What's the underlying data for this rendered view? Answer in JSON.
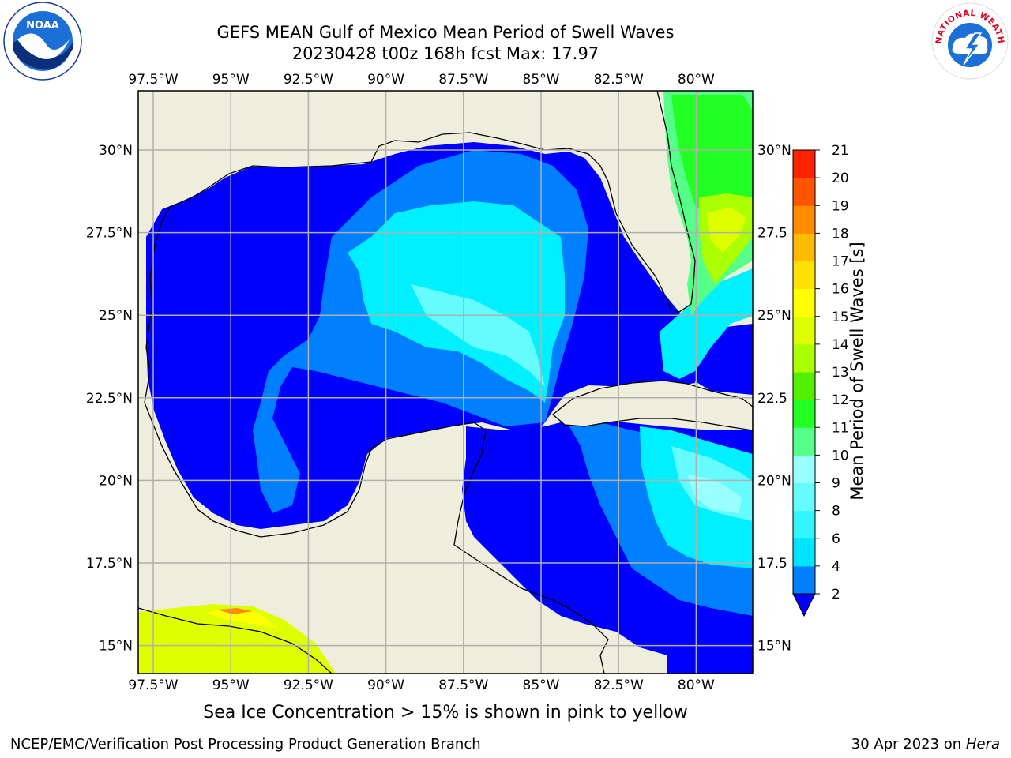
{
  "header": {
    "title_line1": "GEFS MEAN Gulf of Mexico Mean Period of Swell Waves",
    "title_line2": "20230428 t00z 168h fcst   Max: 17.97"
  },
  "map": {
    "lon_labels": [
      "97.5°W",
      "95°W",
      "92.5°W",
      "90°W",
      "87.5°W",
      "85°W",
      "82.5°W",
      "80°W"
    ],
    "lat_labels": [
      "30°N",
      "27.5°N",
      "25°N",
      "22.5°N",
      "20°N",
      "17.5°N",
      "15°N"
    ],
    "lat_labels_right": [
      "30°N",
      "27.5",
      "25°N",
      "22.5",
      "20°N",
      "17.5",
      "15°N"
    ],
    "land_color": "#efeedc",
    "grid_color": "#b0b0b0"
  },
  "colorbar": {
    "label": "Mean Period of Swell Waves [s]",
    "ticks": [
      "2",
      "4",
      "6",
      "8",
      "9",
      "10",
      "11",
      "12",
      "13",
      "14",
      "15",
      "16",
      "17",
      "18",
      "19",
      "20",
      "21"
    ],
    "colors": [
      "#0080ff",
      "#00e5ff",
      "#33f5ff",
      "#66fbff",
      "#99ffff",
      "#55ff88",
      "#22ff22",
      "#55ee00",
      "#aaff00",
      "#ddff00",
      "#ffff00",
      "#ffe000",
      "#ffbb00",
      "#ff8c00",
      "#ff5500",
      "#ff2200"
    ],
    "under_color": "#0000ff"
  },
  "note": "Sea Ice Concentration > 15% is shown in pink to yellow",
  "footer": {
    "left": "NCEP/EMC/Verification Post Processing Product Generation Branch",
    "right_prefix": "30 Apr 2023 on ",
    "right_host": "Hera"
  },
  "logos": {
    "noaa_text": "NOAA",
    "nws_text": "NATIONAL WEATHER SERVICE"
  }
}
